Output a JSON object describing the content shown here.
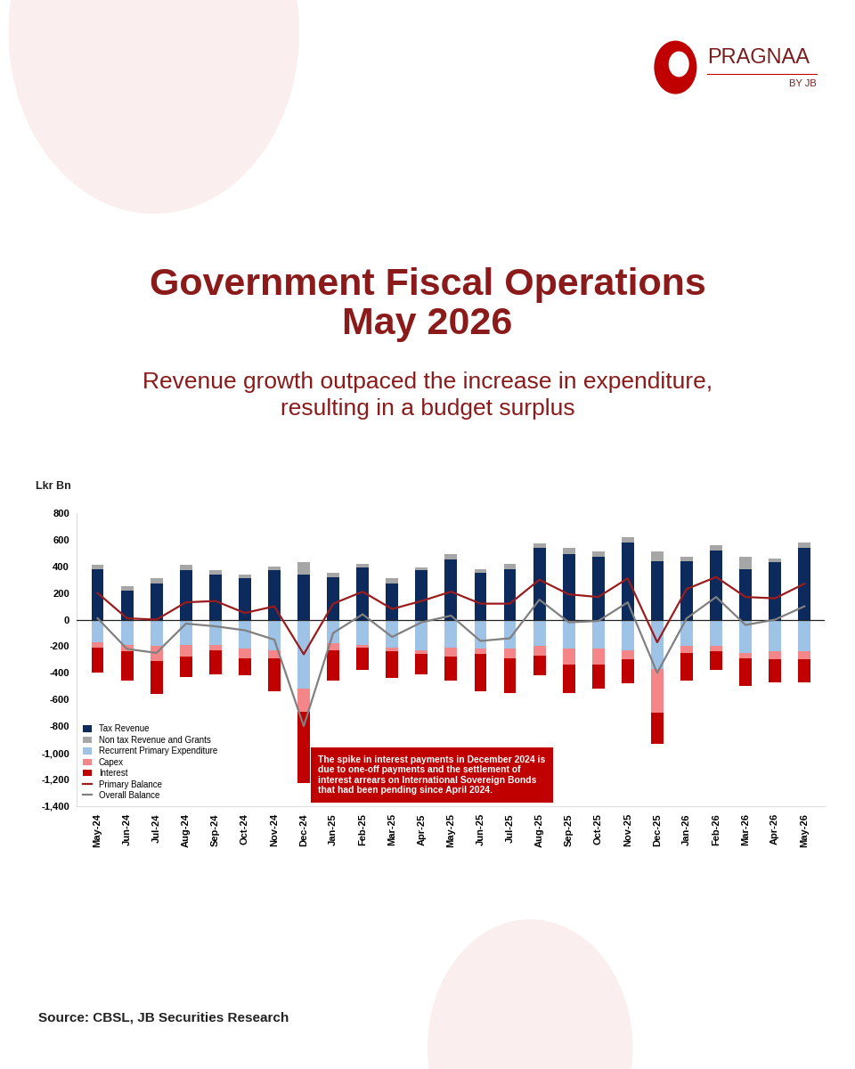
{
  "chart_data": {
    "type": "bar",
    "stacked": true,
    "title": "Government Fiscal Operations\nMay 2026",
    "subtitle": "Revenue growth outpaced the increase in expenditure,\nresulting in a budget surplus",
    "brand": "PRAGNAA",
    "brand_sub": "BY JB",
    "y_label": "Lkr Bn",
    "source": "Source: CBSL, JB Securities Research",
    "annotations": [
      {
        "text": "The spike in interest payments in December 2024 is due to one-off payments and the settlement of interest arrears on International Sovereign Bonds that had been pending since April 2024."
      }
    ],
    "legend": "lower left",
    "categories": [
      "May-24",
      "Jun-24",
      "Jul-24",
      "Aug-24",
      "Sep-24",
      "Oct-24",
      "Nov-24",
      "Dec-24",
      "Jan-25",
      "Feb-25",
      "Mar-25",
      "Apr-25",
      "May-25",
      "Jun-25",
      "Jul-25",
      "Aug-25",
      "Sep-25",
      "Oct-25",
      "Nov-25",
      "Dec-25",
      "Jan-26",
      "Feb-26",
      "Mar-26",
      "Apr-26",
      "May-26"
    ],
    "ylim": [
      -1400,
      800
    ],
    "yticks": [
      800,
      600,
      400,
      200,
      0,
      -200,
      -400,
      -600,
      -800,
      {
        "value": -1000,
        "label": "-1,000"
      },
      {
        "value": -1200,
        "label": "-1,200"
      },
      {
        "value": -1400,
        "label": "-1,400"
      }
    ],
    "series": [
      {
        "name": "Tax Revenue",
        "type": "bar",
        "color": "#0d2a5c",
        "values": [
          380,
          220,
          270,
          370,
          340,
          310,
          370,
          340,
          320,
          390,
          270,
          370,
          450,
          350,
          380,
          540,
          490,
          470,
          580,
          440,
          440,
          520,
          380,
          430,
          540
        ]
      },
      {
        "name": "Non tax Revenue and Grants",
        "type": "bar",
        "color": "#a6a6a6",
        "values": [
          30,
          30,
          40,
          40,
          30,
          30,
          30,
          90,
          30,
          30,
          40,
          20,
          40,
          30,
          40,
          30,
          50,
          40,
          40,
          70,
          30,
          40,
          90,
          30,
          40
        ]
      },
      {
        "name": "Recurrent Primary Expenditure",
        "type": "bar",
        "color": "#9fc3e7",
        "values": [
          -170,
          -190,
          -200,
          -190,
          -190,
          -220,
          -230,
          -520,
          -180,
          -190,
          -210,
          -230,
          -210,
          -220,
          -220,
          -200,
          -220,
          -220,
          -230,
          -370,
          -200,
          -200,
          -250,
          -240,
          -240
        ]
      },
      {
        "name": "Capex",
        "type": "bar",
        "color": "#f4868a",
        "values": [
          -40,
          -50,
          -110,
          -90,
          -40,
          -70,
          -60,
          -170,
          -50,
          -20,
          -30,
          -30,
          -70,
          -40,
          -70,
          -70,
          -120,
          -120,
          -70,
          -330,
          -50,
          -40,
          -40,
          -60,
          -60
        ]
      },
      {
        "name": "Interest",
        "type": "bar",
        "color": "#c00000",
        "values": [
          -190,
          -220,
          -250,
          -150,
          -180,
          -130,
          -250,
          -540,
          -230,
          -170,
          -200,
          -150,
          -180,
          -280,
          -260,
          -150,
          -210,
          -180,
          -180,
          -230,
          -210,
          -140,
          -210,
          -170,
          -170
        ]
      },
      {
        "name": "Primary Balance",
        "type": "line",
        "color": "#9b1c1c",
        "values": [
          200,
          10,
          0,
          130,
          140,
          50,
          100,
          -260,
          120,
          210,
          80,
          140,
          210,
          120,
          120,
          300,
          190,
          170,
          310,
          -170,
          230,
          320,
          170,
          160,
          270
        ]
      },
      {
        "name": "Overall Balance",
        "type": "line",
        "color": "#808080",
        "values": [
          10,
          -220,
          -250,
          -30,
          -50,
          -80,
          -150,
          -800,
          -100,
          40,
          -130,
          -20,
          30,
          -160,
          -140,
          150,
          -20,
          -10,
          130,
          -400,
          10,
          170,
          -40,
          0,
          100
        ]
      }
    ]
  }
}
